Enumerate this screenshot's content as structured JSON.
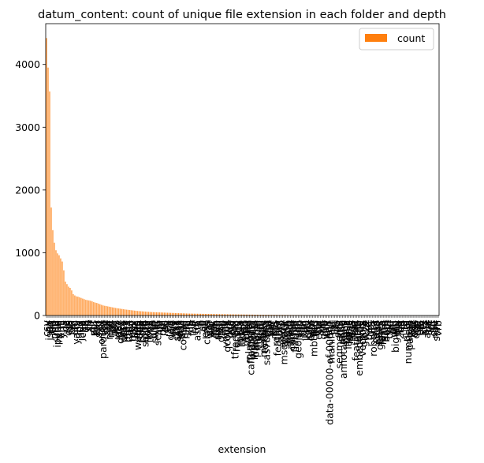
{
  "chart_data": {
    "type": "bar",
    "title": "datum_content: count of unique file extension in each folder and depth",
    "xlabel": "extension",
    "ylabel": "",
    "ylim": [
      0,
      4650
    ],
    "yticks": [
      0,
      1000,
      2000,
      3000,
      4000
    ],
    "grid": false,
    "legend": {
      "position": "top-right",
      "entries": [
        "count"
      ]
    },
    "bar_color": "#ff7f0e",
    "categories": [
      "csv",
      "py",
      "json",
      "txt",
      "jpg",
      "png",
      "md",
      "ipynb",
      "html",
      "xml",
      "yml",
      "js",
      "gz",
      "zip",
      "css",
      "h5",
      "pkl",
      "c",
      "cfg",
      "yaml",
      "npy",
      "log",
      "java",
      "cpp",
      "ts",
      "go",
      "rb",
      "sh",
      "r",
      "gif",
      "pdf",
      "bin",
      "tar",
      "svg",
      "pt",
      "onnx",
      "parquet",
      "tsv",
      "sql",
      "tif",
      "mat",
      "npz",
      "ini",
      "bat",
      "xls",
      "xlsx",
      "doc",
      "docx",
      "ppt",
      "pptx",
      "wav",
      "mp3",
      "mp4",
      "avi",
      "mov",
      "mkv",
      "flac",
      "ogg",
      "webm",
      "m4a",
      "jsonl",
      "dat",
      "db",
      "sqlite",
      "hdf5",
      "lock",
      "toml",
      "cs",
      "php",
      "swift",
      "kt",
      "scala",
      "lua",
      "pl",
      "pm",
      "hs",
      "erl",
      "ex",
      "clj",
      "dart",
      "vue",
      "jsx",
      "tsx",
      "scss",
      "less",
      "sass",
      "styl",
      "coffee",
      "elm",
      "nim",
      "zig",
      "rs",
      "jl",
      "f90",
      "f",
      "for",
      "asm",
      "s",
      "o",
      "so",
      "dll",
      "exe",
      "class",
      "jar",
      "war",
      "ear",
      "apk",
      "ipa",
      "deb",
      "rpm",
      "msi",
      "dmg",
      "iso",
      "img",
      "vmdk",
      "qcow2",
      "vdi",
      "ova",
      "ovf",
      "box",
      "tfrecord",
      "record",
      "idx",
      "meta",
      "index",
      "ckpt",
      "pb",
      "pbtxt",
      "tflite",
      "mlmodel",
      "caffemodel",
      "prototxt",
      "weights",
      "params",
      "model",
      "vocab",
      "spm",
      "bpe",
      "merges",
      "tokens",
      "sas7bdat",
      "dta",
      "sav",
      "por",
      "xpt",
      "rds",
      "rdata",
      "feather",
      "orc",
      "avro",
      "arrow",
      "msgpack",
      "cbor",
      "bson",
      "proto",
      "thrift",
      "capnp",
      "fbs",
      "flatbuf",
      "ubj",
      "geojson",
      "shp",
      "shx",
      "dbf",
      "prj",
      "kml",
      "kmz",
      "gpx",
      "osm",
      "pbf",
      "mbtiles",
      "tiff",
      "jp2",
      "ecw",
      "sid",
      "nc",
      "grib",
      "grb",
      "hdf",
      "he5",
      "data-00000-of-00001",
      "manifest",
      "lst",
      "list",
      "ids",
      "seg",
      "segments",
      "ann",
      "anno",
      "annotations",
      "bbox",
      "mask",
      "labels",
      "label",
      "tags",
      "tag",
      "feat",
      "features",
      "emb",
      "embedding",
      "vec",
      "vectors",
      "glove",
      "w2v",
      "ft",
      "bert",
      "gpt",
      "t5",
      "roberta",
      "xlnet",
      "geo",
      "gene",
      "genes",
      "fasta",
      "fastq",
      "sam",
      "bam",
      "vcf",
      "bed",
      "gff",
      "gtf",
      "wig",
      "bigwig",
      "bw",
      "bb",
      "2bit",
      "nib",
      "fa",
      "fq",
      "qual",
      "numbers",
      "pages",
      "key",
      "odt",
      "ods",
      "odp",
      "rtf",
      "tex",
      "bib",
      "sty",
      "cls",
      "bst",
      "aux",
      "toc",
      "lof",
      "lot",
      "out",
      "nav",
      "snm",
      "vrb"
    ],
    "values": [
      4420,
      3950,
      3570,
      1720,
      1360,
      1160,
      1040,
      990,
      960,
      910,
      860,
      720,
      540,
      500,
      460,
      440,
      400,
      340,
      320,
      305,
      300,
      290,
      280,
      270,
      260,
      250,
      245,
      240,
      235,
      225,
      215,
      205,
      200,
      190,
      180,
      170,
      160,
      155,
      150,
      145,
      140,
      135,
      130,
      125,
      120,
      115,
      112,
      108,
      104,
      100,
      96,
      93,
      90,
      87,
      84,
      81,
      78,
      75,
      72,
      70,
      68,
      66,
      64,
      62,
      60,
      58,
      56,
      54,
      53,
      52,
      51,
      50,
      49,
      48,
      47,
      46,
      45,
      44,
      43,
      42,
      41,
      40,
      39,
      38,
      37,
      36,
      35,
      34,
      33,
      32,
      31,
      30,
      30,
      29,
      29,
      28,
      28,
      27,
      27,
      26,
      26,
      25,
      25,
      24,
      24,
      23,
      23,
      22,
      22,
      21,
      21,
      20,
      20,
      20,
      19,
      19,
      19,
      18,
      18,
      18,
      17,
      17,
      17,
      16,
      16,
      16,
      15,
      15,
      15,
      14,
      14,
      14,
      13,
      13,
      13,
      12,
      12,
      12,
      12,
      11,
      11,
      11,
      11,
      10,
      10,
      10,
      10,
      9,
      9,
      9,
      9,
      9,
      8,
      8,
      8,
      8,
      8,
      7,
      7,
      7,
      7,
      7,
      7,
      6,
      6,
      6,
      6,
      6,
      6,
      5,
      5,
      5,
      5,
      5,
      5,
      5,
      4,
      4,
      4,
      4,
      4,
      4,
      4,
      4,
      3,
      3,
      3,
      3,
      3,
      3,
      3,
      3,
      3,
      3,
      2,
      2,
      2,
      2,
      2,
      2,
      2,
      2,
      2,
      2,
      2,
      2,
      2,
      2,
      1,
      1,
      1,
      1,
      1,
      1,
      1,
      1,
      1,
      1,
      1,
      1,
      1,
      1,
      1,
      1,
      1,
      1,
      1,
      1,
      1,
      1,
      1,
      1,
      1,
      1,
      1,
      1,
      1,
      1,
      1,
      1,
      1,
      1,
      1,
      1,
      1,
      1,
      1,
      1,
      1,
      1
    ],
    "visible_xtick_labels": [
      "csv",
      "py",
      "json",
      "txt",
      "jpg",
      "png",
      "md",
      "ipynb",
      "html",
      "xml",
      "yml",
      "js",
      "gz",
      "zip",
      "css",
      "h5",
      "pkl",
      "c",
      "cfg",
      "yaml",
      "npy",
      "log",
      "java",
      "cpp",
      "ts",
      "go",
      "rb",
      "sh",
      "r",
      "gif",
      "pdf",
      "bin",
      "tar",
      "svg",
      "pt",
      "onnx",
      "parquet",
      "tsv",
      "sql",
      "tif",
      "mat",
      "npz",
      "ini",
      "bat",
      "xls",
      "xlsx",
      "doc",
      "docx",
      "ppt",
      "pptx",
      "wav",
      "mp3",
      "mp4",
      "avi",
      "mov",
      "mkv",
      "flac",
      "ogg",
      "webm",
      "m4a",
      "jsonl",
      "dat",
      "db",
      "sqlite",
      "hdf5",
      "lock",
      "toml",
      "cs",
      "php",
      "swift",
      "kt",
      "scala",
      "lua",
      "pl",
      "pm",
      "hs",
      "erl",
      "ex",
      "clj",
      "dart",
      "vue",
      "jsx",
      "tsx",
      "scss",
      "less",
      "sass",
      "styl",
      "coffee",
      "elm",
      "nim",
      "zig",
      "rs",
      "jl",
      "f90",
      "f",
      "for",
      "asm",
      "s",
      "o",
      "so",
      "dll",
      "exe",
      "class",
      "jar",
      "war",
      "ear",
      "apk",
      "ipa",
      "deb",
      "rpm",
      "msi",
      "dmg",
      "iso",
      "img",
      "vmdk",
      "qcow2",
      "vdi",
      "ova",
      "ovf",
      "box",
      "tfrecord",
      "record",
      "idx",
      "meta",
      "index",
      "ckpt",
      "pb",
      "pbtxt",
      "tflite",
      "mlmodel",
      "caffemodel",
      "prototxt",
      "weights",
      "params",
      "model",
      "vocab",
      "spm",
      "bpe",
      "merges",
      "tokens",
      "sas7bdat",
      "dta",
      "sav",
      "por",
      "xpt",
      "rds",
      "rdata",
      "feather",
      "orc",
      "avro",
      "arrow",
      "msgpack",
      "cbor",
      "bson",
      "proto",
      "thrift",
      "capnp",
      "fbs",
      "flatbuf",
      "ubj",
      "geojson",
      "shp",
      "shx",
      "dbf",
      "prj",
      "kml",
      "kmz",
      "gpx",
      "osm",
      "pbf",
      "mbtiles",
      "tiff",
      "jp2",
      "ecw",
      "sid",
      "nc",
      "grib",
      "grb",
      "hdf",
      "he5",
      "data-00000-of-00001",
      "manifest",
      "lst",
      "list",
      "ids",
      "seg",
      "segments",
      "ann",
      "anno",
      "annotations",
      "bbox",
      "mask",
      "labels",
      "label",
      "tags",
      "tag",
      "feat",
      "features",
      "emb",
      "embedding",
      "vec",
      "vectors",
      "glove",
      "w2v",
      "ft",
      "bert",
      "gpt",
      "t5",
      "roberta",
      "xlnet",
      "geo",
      "gene",
      "genes",
      "fasta",
      "fastq",
      "sam",
      "bam",
      "vcf",
      "bed",
      "gff",
      "gtf",
      "wig",
      "bigwig",
      "bw",
      "bb",
      "2bit",
      "nib",
      "fa",
      "fq",
      "qual",
      "numbers",
      "pages",
      "key",
      "odt",
      "ods",
      "odp",
      "rtf",
      "tex",
      "bib",
      "sty",
      "cls",
      "bst",
      "aux",
      "toc",
      "lof",
      "lot",
      "out",
      "nav",
      "snm",
      "vrb"
    ]
  }
}
